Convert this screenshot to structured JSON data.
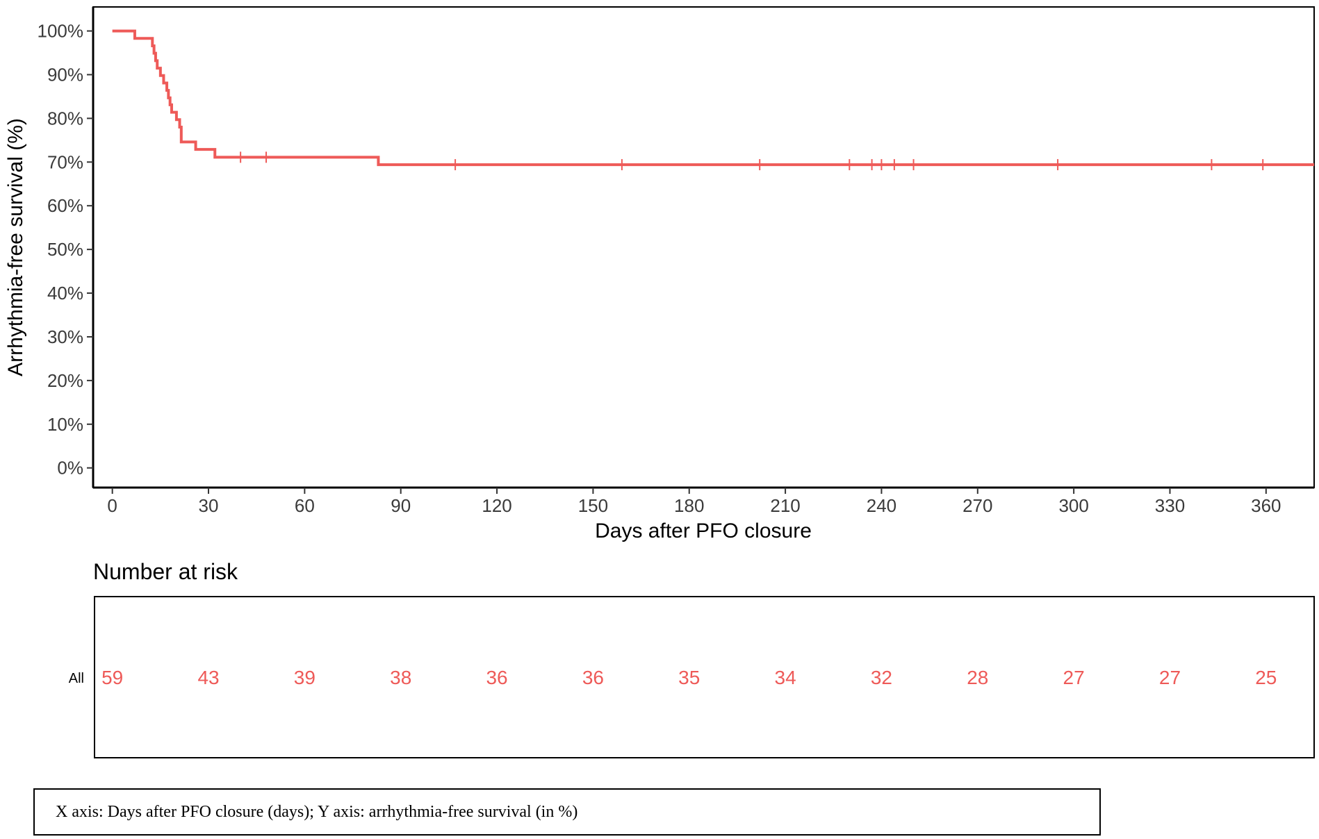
{
  "chart_data": {
    "type": "line",
    "title": "",
    "xlabel": "Days after PFO closure",
    "ylabel": "Arrhythmia-free survival (%)",
    "xlim": [
      -6,
      375
    ],
    "ylim": [
      -4.5,
      105.5
    ],
    "x_ticks": [
      0,
      30,
      60,
      90,
      120,
      150,
      180,
      210,
      240,
      270,
      300,
      330,
      360
    ],
    "x_tick_labels": [
      "0",
      "30",
      "60",
      "90",
      "120",
      "150",
      "180",
      "210",
      "240",
      "270",
      "300",
      "330",
      "360"
    ],
    "y_ticks": [
      0,
      10,
      20,
      30,
      40,
      50,
      60,
      70,
      80,
      90,
      100
    ],
    "y_tick_labels": [
      "0%",
      "10%",
      "20%",
      "30%",
      "40%",
      "50%",
      "60%",
      "70%",
      "80%",
      "90%",
      "100%"
    ],
    "grid": false,
    "legend": "none",
    "color": "#ee5a58",
    "series": [
      {
        "name": "",
        "step_points": [
          [
            0,
            100
          ],
          [
            7,
            98.3
          ],
          [
            12.5,
            96.6
          ],
          [
            13,
            94.9
          ],
          [
            13.5,
            93.2
          ],
          [
            14,
            91.5
          ],
          [
            15,
            89.8
          ],
          [
            16,
            88.1
          ],
          [
            17,
            86.4
          ],
          [
            17.5,
            84.7
          ],
          [
            18,
            83.1
          ],
          [
            18.5,
            81.4
          ],
          [
            20,
            79.7
          ],
          [
            21,
            78.0
          ],
          [
            21.5,
            74.6
          ],
          [
            26,
            72.9
          ],
          [
            32,
            71.1
          ],
          [
            83,
            69.4
          ],
          [
            375,
            69.4
          ]
        ],
        "censor_times": [
          40,
          48,
          107,
          159,
          202,
          230,
          237,
          240,
          244,
          250,
          295,
          343,
          359
        ]
      }
    ]
  },
  "risk_table": {
    "title": "Number at risk",
    "strata_label": "All",
    "times": [
      0,
      30,
      60,
      90,
      120,
      150,
      180,
      210,
      240,
      270,
      300,
      330,
      360
    ],
    "values": [
      "59",
      "43",
      "39",
      "38",
      "36",
      "36",
      "35",
      "34",
      "32",
      "28",
      "27",
      "27",
      "25"
    ]
  },
  "caption": {
    "text": "X axis: Days after PFO closure (days); Y axis: arrhythmia-free survival (in %)"
  }
}
